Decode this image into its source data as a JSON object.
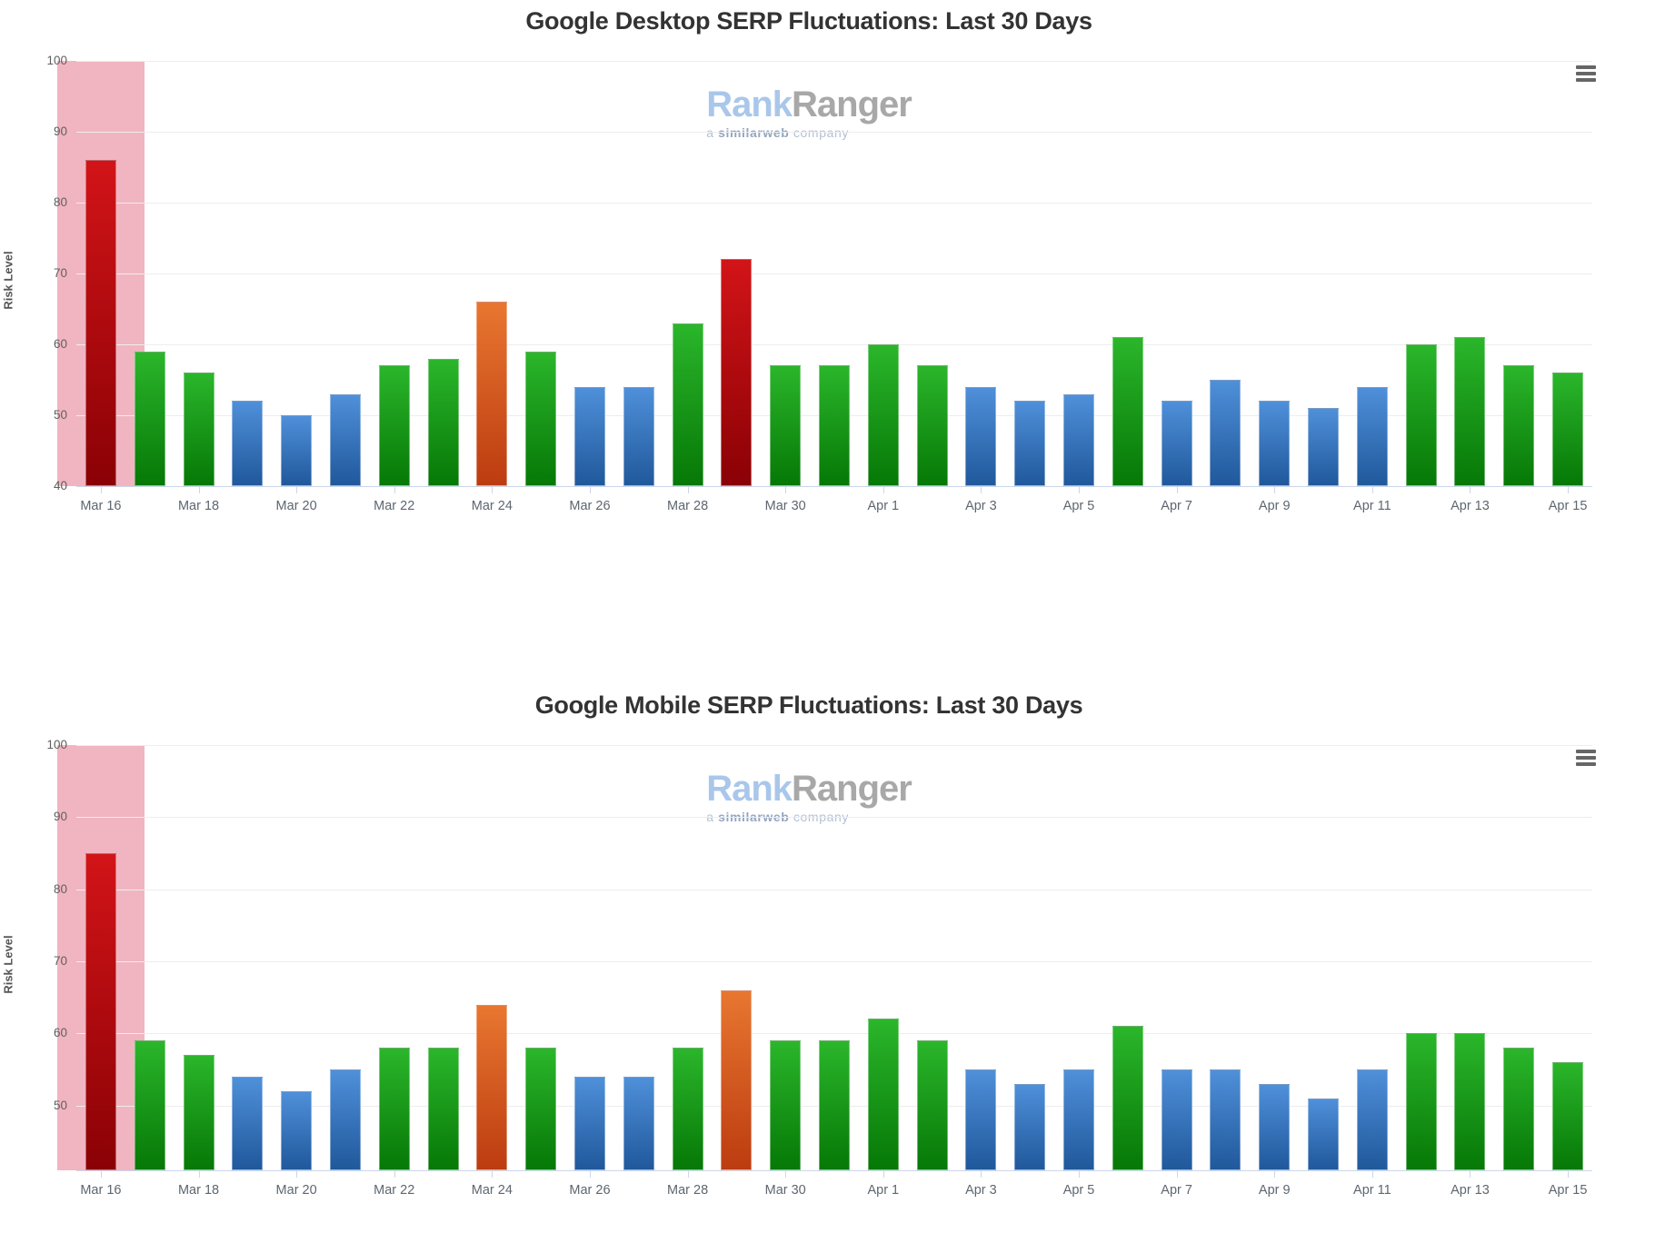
{
  "page": {
    "background": "#ffffff"
  },
  "watermark": {
    "brand_primary": "Rank",
    "brand_secondary": "Ranger",
    "tagline_prefix": "a ",
    "tagline_bold": "similarweb",
    "tagline_suffix": " company",
    "brand_primary_color": "#a9c7ea",
    "brand_secondary_color": "#a8a8a8",
    "tagline_color": "#b3c0d4"
  },
  "icons": {
    "menu_icon": "hamburger-menu"
  },
  "palette": {
    "red": {
      "top": "#d21418",
      "bottom": "#8a0105"
    },
    "green": {
      "top": "#2bb62b",
      "bottom": "#067806"
    },
    "blue": {
      "top": "#4f90da",
      "bottom": "#20589b"
    },
    "orange": {
      "top": "#e87630",
      "bottom": "#bc3c10"
    },
    "highlight_band": "#f0b5c1",
    "gridline": "#ededed",
    "axis_line": "#ccd6ea",
    "title_text": "#333333",
    "axis_text": "#606060"
  },
  "chart_data": [
    {
      "type": "bar",
      "title": "Google Desktop SERP Fluctuations: Last 30 Days",
      "ylabel": "Risk Level",
      "ylim": [
        40,
        100
      ],
      "yticks": [
        40,
        50,
        60,
        70,
        80,
        90,
        100
      ],
      "grid": true,
      "legend": "none",
      "x_labels_every": 2,
      "categories": [
        "Mar 16",
        "Mar 17",
        "Mar 18",
        "Mar 19",
        "Mar 20",
        "Mar 21",
        "Mar 22",
        "Mar 23",
        "Mar 24",
        "Mar 25",
        "Mar 26",
        "Mar 27",
        "Mar 28",
        "Mar 29",
        "Mar 30",
        "Mar 31",
        "Apr 1",
        "Apr 2",
        "Apr 3",
        "Apr 4",
        "Apr 5",
        "Apr 6",
        "Apr 7",
        "Apr 8",
        "Apr 9",
        "Apr 10",
        "Apr 11",
        "Apr 12",
        "Apr 13",
        "Apr 14",
        "Apr 15"
      ],
      "values": [
        86,
        59,
        56,
        52,
        50,
        53,
        57,
        58,
        66,
        59,
        54,
        54,
        63,
        72,
        57,
        57,
        60,
        57,
        54,
        52,
        53,
        61,
        52,
        55,
        52,
        51,
        54,
        60,
        61,
        57,
        56
      ],
      "bar_colors": [
        "red",
        "green",
        "green",
        "blue",
        "blue",
        "blue",
        "green",
        "green",
        "orange",
        "green",
        "blue",
        "blue",
        "green",
        "red",
        "green",
        "green",
        "green",
        "green",
        "blue",
        "blue",
        "blue",
        "green",
        "blue",
        "blue",
        "blue",
        "blue",
        "blue",
        "green",
        "green",
        "green",
        "green"
      ],
      "highlight_band": {
        "category": "Mar 16"
      }
    },
    {
      "type": "bar",
      "title": "Google Mobile SERP Fluctuations: Last 30 Days",
      "ylabel": "Risk Level",
      "ylim": [
        41,
        100
      ],
      "yticks": [
        50,
        60,
        70,
        80,
        90,
        100
      ],
      "grid": true,
      "legend": "none",
      "x_labels_every": 2,
      "categories": [
        "Mar 16",
        "Mar 17",
        "Mar 18",
        "Mar 19",
        "Mar 20",
        "Mar 21",
        "Mar 22",
        "Mar 23",
        "Mar 24",
        "Mar 25",
        "Mar 26",
        "Mar 27",
        "Mar 28",
        "Mar 29",
        "Mar 30",
        "Mar 31",
        "Apr 1",
        "Apr 2",
        "Apr 3",
        "Apr 4",
        "Apr 5",
        "Apr 6",
        "Apr 7",
        "Apr 8",
        "Apr 9",
        "Apr 10",
        "Apr 11",
        "Apr 12",
        "Apr 13",
        "Apr 14",
        "Apr 15"
      ],
      "values": [
        85,
        59,
        57,
        54,
        52,
        55,
        58,
        58,
        64,
        58,
        54,
        54,
        58,
        66,
        59,
        59,
        62,
        59,
        55,
        53,
        55,
        61,
        55,
        55,
        53,
        51,
        55,
        60,
        60,
        58,
        56
      ],
      "bar_colors": [
        "red",
        "green",
        "green",
        "blue",
        "blue",
        "blue",
        "green",
        "green",
        "orange",
        "green",
        "blue",
        "blue",
        "green",
        "orange",
        "green",
        "green",
        "green",
        "green",
        "blue",
        "blue",
        "blue",
        "green",
        "blue",
        "blue",
        "blue",
        "blue",
        "blue",
        "green",
        "green",
        "green",
        "green"
      ],
      "highlight_band": {
        "category": "Mar 16"
      }
    }
  ]
}
